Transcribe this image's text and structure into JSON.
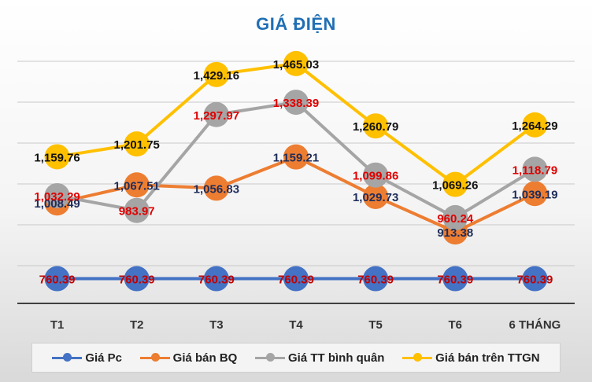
{
  "chart_data": {
    "type": "line",
    "title": "GIÁ ĐIỆN",
    "categories": [
      "T1",
      "T2",
      "T3",
      "T4",
      "T5",
      "T6",
      "6 THÁNG"
    ],
    "ylim": [
      700,
      1560
    ],
    "grid": true,
    "legend_position": "bottom",
    "series": [
      {
        "name": "Giá Pc",
        "color": "#4472c4",
        "label_color": "#c00000",
        "values": [
          760.39,
          760.39,
          760.39,
          760.39,
          760.39,
          760.39,
          760.39
        ],
        "labels": [
          "760.39",
          "760.39",
          "760.39",
          "760.39",
          "760.39",
          "760.39",
          "760.39"
        ]
      },
      {
        "name": "Giá bán BQ",
        "color": "#ed7d31",
        "label_color": "#1f2d5a",
        "values": [
          1008.49,
          1067.51,
          1056.83,
          1159.21,
          1029.73,
          913.38,
          1039.19
        ],
        "labels": [
          "1,008.49",
          "1,067.51",
          "1,056.83",
          "1,159.21",
          "1,029.73",
          "913.38",
          "1,039.19"
        ]
      },
      {
        "name": "Giá TT bình quân",
        "color": "#a5a5a5",
        "label_color": "#e00000",
        "values": [
          1032.29,
          983.97,
          1297.97,
          1338.39,
          1099.86,
          960.24,
          1118.79
        ],
        "labels": [
          "1,032.29",
          "983.97",
          "1,297.97",
          "1,338.39",
          "1,099.86",
          "960.24",
          "1,118.79"
        ]
      },
      {
        "name": "Giá bán trên TTGN",
        "color": "#ffc000",
        "label_color": "#111111",
        "values": [
          1159.76,
          1201.75,
          1429.16,
          1465.03,
          1260.79,
          1069.26,
          1264.29
        ],
        "labels": [
          "1,159.76",
          "1,201.75",
          "1,429.16",
          "1,465.03",
          "1,260.79",
          "1,069.26",
          "1,264.29"
        ]
      }
    ]
  }
}
